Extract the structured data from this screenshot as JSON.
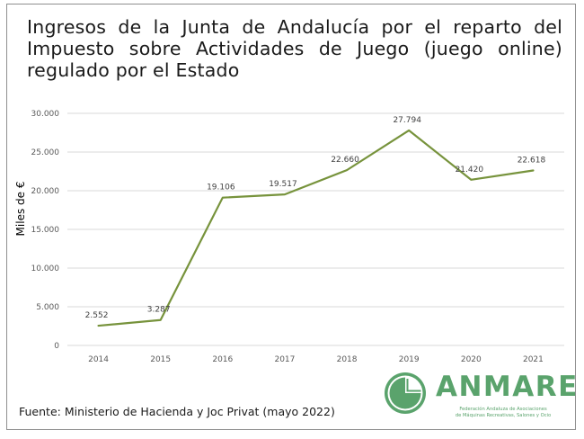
{
  "title": "Ingresos de la Junta de Andalucía por el reparto del Impuesto sobre Actividades de Juego (juego online) regulado por el Estado",
  "source": "Fuente: Ministerio de Hacienda y Joc Privat (mayo 2022)",
  "logo": {
    "name": "ANMARE",
    "subtitle_line1": "Federación Andaluza de Asociaciones",
    "subtitle_line2": "de Máquinas Recreativas, Salones y Ocio",
    "color": "#5aa36c",
    "icon": "anmare-logo-icon"
  },
  "chart_data": {
    "type": "line",
    "title": "Ingresos de la Junta de Andalucía por el reparto del Impuesto sobre Actividades de Juego (juego online) regulado por el Estado",
    "xlabel": "",
    "ylabel": "Miles de €",
    "categories": [
      "2014",
      "2015",
      "2016",
      "2017",
      "2018",
      "2019",
      "2020",
      "2021"
    ],
    "series": [
      {
        "name": "Ingresos",
        "values": [
          2552,
          3287,
          19106,
          19517,
          22660,
          27794,
          21420,
          22618
        ],
        "labels": [
          "2.552",
          "3.287",
          "19.106",
          "19.517",
          "22.660",
          "27.794",
          "21.420",
          "22.618"
        ],
        "color": "#77933c"
      }
    ],
    "ylim": [
      0,
      30000
    ],
    "yticks": [
      0,
      5000,
      10000,
      15000,
      20000,
      25000,
      30000
    ],
    "ytick_labels": [
      "0",
      "5.000",
      "10.000",
      "15.000",
      "20.000",
      "25.000",
      "30.000"
    ],
    "grid": true,
    "grid_color": "#d9d9d9",
    "legend": "none"
  }
}
